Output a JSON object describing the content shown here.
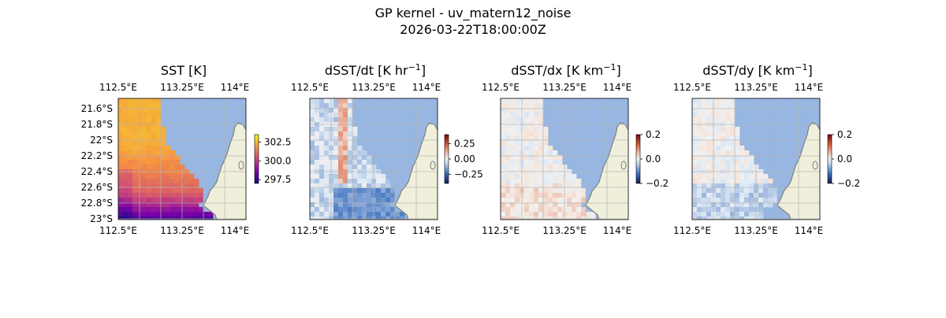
{
  "figure": {
    "title_line1": "GP kernel - uv_matern12_noise",
    "title_line2": "2026-03-22T18:00:00Z"
  },
  "lon_ticks": [
    "112.5°E",
    "113.25°E",
    "114°E"
  ],
  "lat_ticks": [
    "21.6°S",
    "21.8°S",
    "22°S",
    "22.2°S",
    "22.4°S",
    "22.6°S",
    "22.8°S",
    "23°S"
  ],
  "colors": {
    "ocean": "#97b6e1",
    "land": "#efefdb",
    "coast": "#7f7f7f",
    "grid": "#b4b4b4"
  },
  "panels": [
    {
      "title_main": "SST [K]",
      "title_sup": "",
      "title_end": "",
      "show_lat_labels": true,
      "field": "sst",
      "colorbar": {
        "colormap": "plasma",
        "min": 297.0,
        "max": 303.5,
        "ticks": [
          "302.5",
          "300.0",
          "297.5"
        ],
        "tick_values": [
          302.5,
          300.0,
          297.5
        ]
      }
    },
    {
      "title_main": "dSST/dt [K hr",
      "title_sup": "−1",
      "title_end": "]",
      "show_lat_labels": false,
      "field": "dt",
      "colorbar": {
        "colormap": "diverging",
        "min": -0.4,
        "max": 0.4,
        "ticks": [
          "0.25",
          "0.00",
          "−0.25"
        ],
        "tick_values": [
          0.25,
          0.0,
          -0.25
        ]
      }
    },
    {
      "title_main": "dSST/dx [K km",
      "title_sup": "−1",
      "title_end": "]",
      "show_lat_labels": false,
      "field": "dx",
      "colorbar": {
        "colormap": "diverging",
        "min": -0.2,
        "max": 0.2,
        "ticks": [
          "0.2",
          "0.0",
          "−0.2"
        ],
        "tick_values": [
          0.2,
          0.0,
          -0.2
        ]
      }
    },
    {
      "title_main": "dSST/dy [K km",
      "title_sup": "−1",
      "title_end": "]",
      "show_lat_labels": false,
      "field": "dy",
      "colorbar": {
        "colormap": "diverging",
        "min": -0.2,
        "max": 0.2,
        "ticks": [
          "0.2",
          "0.0",
          "−0.2"
        ],
        "tick_values": [
          0.2,
          0.0,
          -0.2
        ]
      }
    }
  ]
}
